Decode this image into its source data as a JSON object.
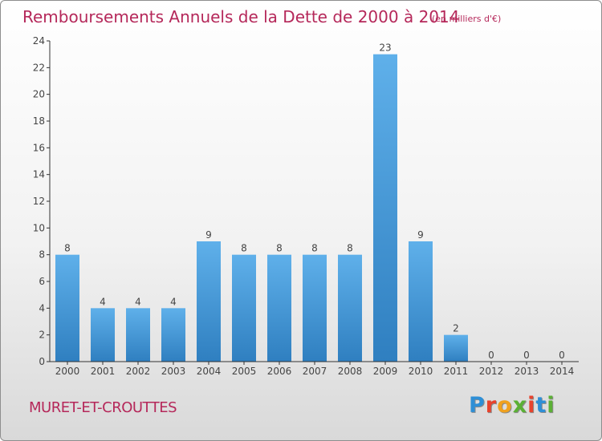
{
  "header": {
    "title": "Remboursements Annuels de la Dette de 2000 à 2014",
    "subtitle": "(en milliers d'€)"
  },
  "footer": {
    "commune": "MURET-ET-CROUTTES",
    "logo_letters": [
      "P",
      "r",
      "o",
      "x",
      "i",
      "t",
      "i"
    ],
    "logo_colors": [
      "#2e8fd6",
      "#e8432d",
      "#f0a11e",
      "#5bb035",
      "#e8432d",
      "#2e8fd6",
      "#5bb035"
    ]
  },
  "colors": {
    "title": "#b5285a",
    "bar_light": "#5fb0ea",
    "bar_dark": "#2f7fc0",
    "axis": "#333333",
    "label": "#444444"
  },
  "chart_data": {
    "type": "bar",
    "title": "Remboursements Annuels de la Dette de 2000 à 2014",
    "subtitle": "(en milliers d'€)",
    "xlabel": "",
    "ylabel": "",
    "categories": [
      "2000",
      "2001",
      "2002",
      "2003",
      "2004",
      "2005",
      "2006",
      "2007",
      "2008",
      "2009",
      "2010",
      "2011",
      "2012",
      "2013",
      "2014"
    ],
    "values": [
      8,
      4,
      4,
      4,
      9,
      8,
      8,
      8,
      8,
      23,
      9,
      2,
      0,
      0,
      0
    ],
    "data_labels": [
      "8",
      "4",
      "4",
      "4",
      "9",
      "8",
      "8",
      "8",
      "8",
      "23",
      "9",
      "2",
      "0",
      "0",
      "0"
    ],
    "ylim": [
      0,
      24
    ],
    "yticks": [
      0,
      2,
      4,
      6,
      8,
      10,
      12,
      14,
      16,
      18,
      20,
      22,
      24
    ],
    "ytick_labels": [
      "0",
      "2",
      "4",
      "6",
      "8",
      "10",
      "12",
      "14",
      "16",
      "18",
      "20",
      "22",
      "24"
    ],
    "grid": false,
    "legend": "none"
  }
}
